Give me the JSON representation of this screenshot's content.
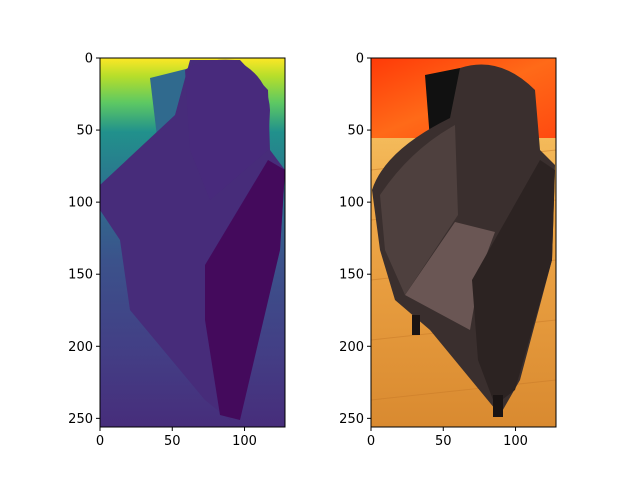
{
  "chart_data": [
    {
      "type": "image",
      "title": "",
      "colormap": "viridis",
      "content": "depth map of armchair",
      "image_size": [
        128,
        256
      ],
      "xlim": [
        0,
        128
      ],
      "ylim": [
        256,
        0
      ],
      "x_ticks": [
        0,
        50,
        100
      ],
      "y_ticks": [
        0,
        50,
        100,
        150,
        200,
        250
      ],
      "x_tick_labels": [
        "0",
        "50",
        "100"
      ],
      "y_tick_labels": [
        "0",
        "50",
        "100",
        "150",
        "200",
        "250"
      ]
    },
    {
      "type": "image",
      "title": "",
      "colormap": "rgb",
      "content": "rendered armchair on wooden floor with orange background",
      "image_size": [
        128,
        256
      ],
      "xlim": [
        0,
        128
      ],
      "ylim": [
        256,
        0
      ],
      "x_ticks": [
        0,
        50,
        100
      ],
      "y_ticks": [
        0,
        50,
        100,
        150,
        200,
        250
      ],
      "x_tick_labels": [
        "0",
        "50",
        "100"
      ],
      "y_tick_labels": [
        "0",
        "50",
        "100",
        "150",
        "200",
        "250"
      ]
    }
  ],
  "colors": {
    "viridis_top": "#fde725",
    "viridis_mid": "#21918c",
    "viridis_low": "#3b528b",
    "viridis_dark": "#482878",
    "viridis_min": "#440154",
    "wall_orange": "#ff5a10",
    "floor_wood": "#f0a848",
    "chair_dark": "#3a2f2e",
    "chair_light": "#5e4d4b"
  }
}
